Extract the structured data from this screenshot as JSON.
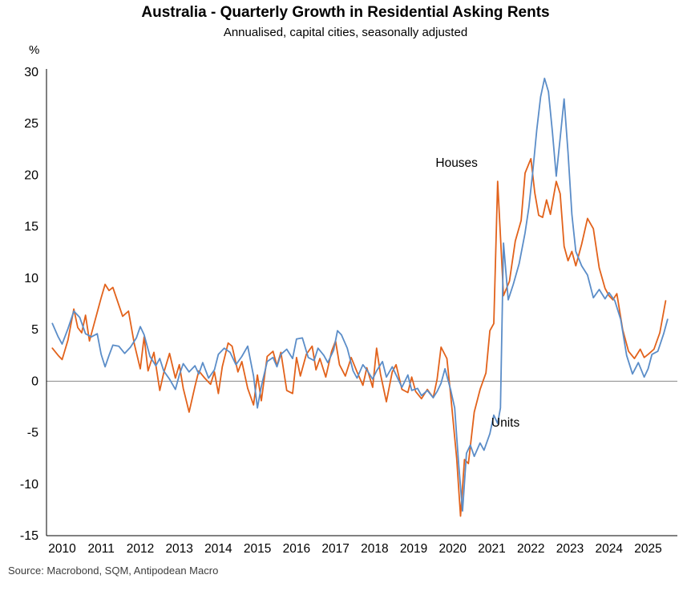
{
  "chart_data": {
    "type": "line",
    "title": "Australia - Quarterly Growth in Residential Asking Rents",
    "subtitle": "Annualised, capital cities, seasonally adjusted",
    "ylabel": "%",
    "source": "Source: Macrobond, SQM, Antipodean Macro",
    "xlim": [
      2009.6,
      2025.75
    ],
    "ylim": [
      -15,
      30
    ],
    "yticks": [
      30,
      25,
      20,
      15,
      10,
      5,
      0,
      -5,
      -10,
      -15
    ],
    "xticks": [
      2010,
      2011,
      2012,
      2013,
      2014,
      2015,
      2016,
      2017,
      2018,
      2019,
      2020,
      2021,
      2022,
      2023,
      2024,
      2025
    ],
    "grid": false,
    "zero_line": true,
    "zero_line_color": "#8a8a8a",
    "axis_color": "#000000",
    "legend_position": "inline-annotations",
    "series": [
      {
        "name": "Houses",
        "color": "#E2621B",
        "label_pos": [
          2020.1,
          20.8
        ],
        "x": [
          2009.75,
          2009.9,
          2010.0,
          2010.15,
          2010.3,
          2010.4,
          2010.5,
          2010.6,
          2010.7,
          2010.85,
          2011.0,
          2011.1,
          2011.2,
          2011.3,
          2011.45,
          2011.55,
          2011.7,
          2011.85,
          2012.0,
          2012.1,
          2012.2,
          2012.35,
          2012.5,
          2012.6,
          2012.75,
          2012.9,
          2013.0,
          2013.1,
          2013.25,
          2013.4,
          2013.5,
          2013.65,
          2013.8,
          2013.9,
          2014.0,
          2014.1,
          2014.25,
          2014.35,
          2014.5,
          2014.6,
          2014.75,
          2014.9,
          2015.0,
          2015.1,
          2015.25,
          2015.4,
          2015.5,
          2015.6,
          2015.75,
          2015.9,
          2016.0,
          2016.1,
          2016.25,
          2016.4,
          2016.5,
          2016.6,
          2016.75,
          2016.9,
          2017.0,
          2017.1,
          2017.25,
          2017.4,
          2017.55,
          2017.7,
          2017.8,
          2017.95,
          2018.05,
          2018.15,
          2018.3,
          2018.45,
          2018.55,
          2018.7,
          2018.85,
          2018.95,
          2019.05,
          2019.2,
          2019.35,
          2019.5,
          2019.6,
          2019.7,
          2019.85,
          2019.95,
          2020.1,
          2020.2,
          2020.3,
          2020.4,
          2020.55,
          2020.7,
          2020.85,
          2020.95,
          2021.05,
          2021.15,
          2021.3,
          2021.45,
          2021.6,
          2021.75,
          2021.85,
          2022.0,
          2022.1,
          2022.2,
          2022.3,
          2022.4,
          2022.5,
          2022.65,
          2022.75,
          2022.85,
          2022.95,
          2023.05,
          2023.15,
          2023.3,
          2023.45,
          2023.6,
          2023.75,
          2023.9,
          2024.0,
          2024.1,
          2024.2,
          2024.35,
          2024.5,
          2024.65,
          2024.8,
          2024.9,
          2025.0,
          2025.15,
          2025.3,
          2025.45
        ],
        "y": [
          3.2,
          2.5,
          2.1,
          4.0,
          7.0,
          5.2,
          4.7,
          6.4,
          3.9,
          6.0,
          8.1,
          9.4,
          8.8,
          9.1,
          7.4,
          6.3,
          6.8,
          3.6,
          1.2,
          4.3,
          1.0,
          2.8,
          -0.9,
          0.8,
          2.7,
          0.3,
          1.6,
          -0.7,
          -3.0,
          -0.5,
          1.0,
          0.3,
          -0.3,
          0.9,
          -1.2,
          1.4,
          3.7,
          3.4,
          0.9,
          1.9,
          -0.7,
          -2.3,
          0.6,
          -1.9,
          2.4,
          2.9,
          1.5,
          2.8,
          -0.9,
          -1.2,
          2.3,
          0.5,
          2.6,
          3.4,
          1.1,
          2.2,
          0.4,
          2.9,
          3.9,
          1.6,
          0.5,
          2.3,
          0.9,
          -0.4,
          1.3,
          -0.6,
          3.2,
          0.7,
          -2.0,
          0.9,
          1.6,
          -0.8,
          -1.1,
          0.4,
          -1.0,
          -1.7,
          -0.8,
          -1.6,
          0.2,
          3.3,
          2.2,
          -1.5,
          -7.5,
          -13.1,
          -7.6,
          -8.0,
          -3.0,
          -0.8,
          0.8,
          4.9,
          5.6,
          19.4,
          8.3,
          9.7,
          13.6,
          15.6,
          20.2,
          21.6,
          18.3,
          16.1,
          15.9,
          17.6,
          16.2,
          19.4,
          18.2,
          13.1,
          11.7,
          12.6,
          11.2,
          13.3,
          15.8,
          14.8,
          11.0,
          9.0,
          8.3,
          7.9,
          8.5,
          5.0,
          2.9,
          2.2,
          3.1,
          2.3,
          2.6,
          3.1,
          4.7,
          7.8
        ]
      },
      {
        "name": "Units",
        "color": "#5B8DC8",
        "label_pos": [
          2021.35,
          -4.4
        ],
        "x": [
          2009.75,
          2009.9,
          2010.0,
          2010.15,
          2010.3,
          2010.45,
          2010.6,
          2010.75,
          2010.9,
          2011.0,
          2011.1,
          2011.2,
          2011.3,
          2011.45,
          2011.6,
          2011.75,
          2011.9,
          2012.0,
          2012.1,
          2012.25,
          2012.4,
          2012.5,
          2012.6,
          2012.75,
          2012.9,
          2013.0,
          2013.1,
          2013.25,
          2013.4,
          2013.5,
          2013.6,
          2013.75,
          2013.9,
          2014.0,
          2014.15,
          2014.3,
          2014.45,
          2014.6,
          2014.75,
          2014.9,
          2015.0,
          2015.1,
          2015.25,
          2015.4,
          2015.5,
          2015.6,
          2015.75,
          2015.9,
          2016.0,
          2016.15,
          2016.3,
          2016.45,
          2016.55,
          2016.7,
          2016.8,
          2016.95,
          2017.05,
          2017.15,
          2017.3,
          2017.45,
          2017.55,
          2017.7,
          2017.8,
          2017.95,
          2018.05,
          2018.2,
          2018.3,
          2018.45,
          2018.6,
          2018.7,
          2018.85,
          2018.95,
          2019.1,
          2019.2,
          2019.35,
          2019.5,
          2019.6,
          2019.7,
          2019.8,
          2019.95,
          2020.05,
          2020.15,
          2020.25,
          2020.35,
          2020.45,
          2020.55,
          2020.7,
          2020.8,
          2020.95,
          2021.05,
          2021.15,
          2021.22,
          2021.3,
          2021.42,
          2021.55,
          2021.7,
          2021.85,
          2021.95,
          2022.05,
          2022.15,
          2022.25,
          2022.35,
          2022.45,
          2022.55,
          2022.65,
          2022.75,
          2022.85,
          2022.95,
          2023.05,
          2023.15,
          2023.3,
          2023.45,
          2023.6,
          2023.75,
          2023.9,
          2024.0,
          2024.15,
          2024.3,
          2024.45,
          2024.6,
          2024.75,
          2024.9,
          2025.0,
          2025.1,
          2025.25,
          2025.4,
          2025.5
        ],
        "y": [
          5.6,
          4.3,
          3.6,
          5.1,
          6.8,
          6.2,
          4.6,
          4.3,
          4.6,
          2.6,
          1.4,
          2.5,
          3.5,
          3.4,
          2.7,
          3.3,
          4.2,
          5.3,
          4.5,
          2.4,
          1.5,
          2.2,
          1.0,
          0.2,
          -0.8,
          0.6,
          1.7,
          0.9,
          1.5,
          0.7,
          1.8,
          0.3,
          1.1,
          2.6,
          3.2,
          2.8,
          1.6,
          2.4,
          3.4,
          0.5,
          -2.6,
          -0.5,
          1.9,
          2.3,
          1.4,
          2.6,
          3.1,
          2.2,
          4.1,
          4.2,
          2.3,
          2.0,
          3.2,
          2.5,
          1.8,
          3.0,
          4.9,
          4.5,
          3.2,
          1.0,
          0.3,
          1.6,
          1.1,
          0.2,
          1.0,
          1.9,
          0.4,
          1.4,
          0.2,
          -0.6,
          0.6,
          -0.9,
          -0.7,
          -1.4,
          -0.9,
          -1.6,
          -1.0,
          -0.2,
          1.2,
          -0.9,
          -2.6,
          -8.0,
          -12.6,
          -7.0,
          -6.2,
          -7.3,
          -6.0,
          -6.7,
          -5.1,
          -3.3,
          -4.1,
          -2.6,
          13.4,
          7.9,
          9.4,
          11.4,
          14.4,
          16.9,
          20.4,
          24.4,
          27.6,
          29.4,
          28.1,
          24.2,
          19.9,
          23.6,
          27.4,
          22.2,
          16.2,
          12.6,
          11.2,
          10.3,
          8.1,
          8.9,
          8.0,
          8.6,
          7.8,
          6.0,
          2.5,
          0.7,
          1.8,
          0.4,
          1.2,
          2.6,
          2.9,
          4.6,
          6.0
        ]
      }
    ]
  }
}
